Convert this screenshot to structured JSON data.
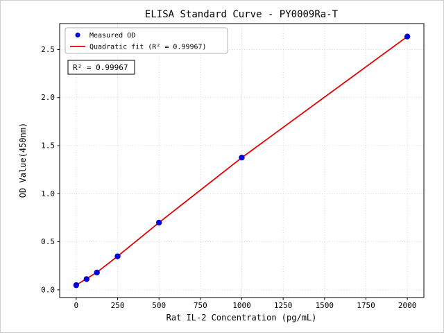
{
  "chart_data": {
    "type": "scatter",
    "title": "ELISA Standard Curve - PY0009Ra-T",
    "xlabel": "Rat IL-2 Concentration (pg/mL)",
    "ylabel": "OD Value(450nm)",
    "xlim": [
      -100,
      2100
    ],
    "ylim": [
      -0.08,
      2.77
    ],
    "xtick_values": [
      0,
      250,
      500,
      750,
      1000,
      1250,
      1500,
      1750,
      2000
    ],
    "xtick_labels": [
      "0",
      "250",
      "500",
      "750",
      "1000",
      "1250",
      "1500",
      "1750",
      "2000"
    ],
    "ytick_values": [
      0.0,
      0.5,
      1.0,
      1.5,
      2.0,
      2.5
    ],
    "ytick_labels": [
      "0.0",
      "0.5",
      "1.0",
      "1.5",
      "2.0",
      "2.5"
    ],
    "grid": true,
    "legend_position": "upper left",
    "background_color": "#ffffff",
    "series": [
      {
        "name": "Measured OD",
        "type": "scatter",
        "color": "#0000dd",
        "x": [
          0,
          62.5,
          125,
          250,
          500,
          1000,
          2000
        ],
        "y": [
          0.049,
          0.112,
          0.18,
          0.349,
          0.7,
          1.376,
          2.635
        ]
      },
      {
        "name": "Quadratic fit (R² = 0.99967)",
        "type": "line",
        "color": "#e60000",
        "x": [
          0,
          125,
          250,
          500,
          1000,
          1500,
          2000
        ],
        "y": [
          0.05,
          0.182,
          0.35,
          0.7,
          1.375,
          2.005,
          2.635
        ]
      }
    ],
    "annotation": "R² = 0.99967"
  }
}
